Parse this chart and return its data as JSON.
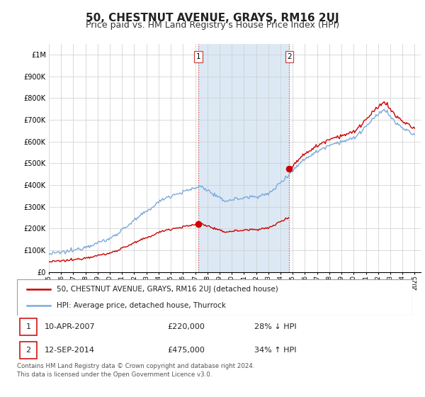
{
  "title": "50, CHESTNUT AVENUE, GRAYS, RM16 2UJ",
  "subtitle": "Price paid vs. HM Land Registry's House Price Index (HPI)",
  "title_fontsize": 11,
  "subtitle_fontsize": 9,
  "background_color": "#ffffff",
  "grid_color": "#cccccc",
  "hpi_line_color": "#7aaadd",
  "price_line_color": "#cc0000",
  "sale_dot_color": "#cc0000",
  "shaded_region_color": "#dce9f5",
  "shaded_x1_start": 2007.27,
  "shaded_x1_end": 2014.72,
  "sale1_x": 2007.27,
  "sale1_y": 220000,
  "sale2_x": 2014.72,
  "sale2_y": 475000,
  "ylim": [
    0,
    1050000
  ],
  "xlim_start": 1995.0,
  "xlim_end": 2025.5,
  "yticks": [
    0,
    100000,
    200000,
    300000,
    400000,
    500000,
    600000,
    700000,
    800000,
    900000,
    1000000
  ],
  "ytick_labels": [
    "£0",
    "£100K",
    "£200K",
    "£300K",
    "£400K",
    "£500K",
    "£600K",
    "£700K",
    "£800K",
    "£900K",
    "£1M"
  ],
  "xtick_years": [
    1995,
    1996,
    1997,
    1998,
    1999,
    2000,
    2001,
    2002,
    2003,
    2004,
    2005,
    2006,
    2007,
    2008,
    2009,
    2010,
    2011,
    2012,
    2013,
    2014,
    2015,
    2016,
    2017,
    2018,
    2019,
    2020,
    2021,
    2022,
    2023,
    2024,
    2025
  ],
  "legend_price_label": "50, CHESTNUT AVENUE, GRAYS, RM16 2UJ (detached house)",
  "legend_hpi_label": "HPI: Average price, detached house, Thurrock",
  "note1_label": "1",
  "note1_date": "10-APR-2007",
  "note1_price": "£220,000",
  "note1_hpi": "28% ↓ HPI",
  "note2_label": "2",
  "note2_date": "12-SEP-2014",
  "note2_price": "£475,000",
  "note2_hpi": "34% ↑ HPI",
  "footer": "Contains HM Land Registry data © Crown copyright and database right 2024.\nThis data is licensed under the Open Government Licence v3.0."
}
